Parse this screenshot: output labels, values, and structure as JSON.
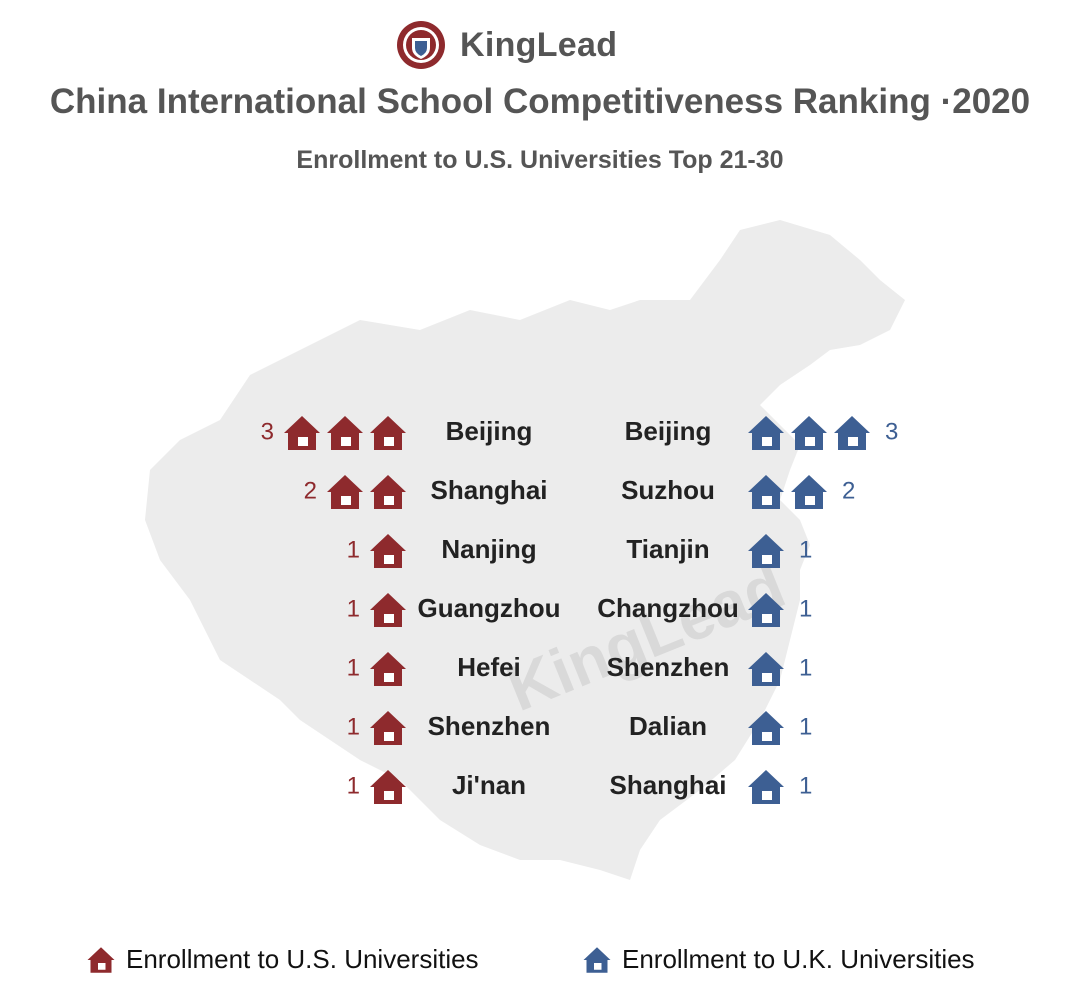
{
  "brand": {
    "name": "KingLead"
  },
  "watermark": "KingLead",
  "colors": {
    "us": "#8e2a2d",
    "uk": "#3d5f93",
    "text": "#222222",
    "heading": "#555555",
    "map": "#ececec"
  },
  "chart_data": {
    "type": "bar",
    "title": "China International School Competitiveness Ranking ·2020",
    "subtitle": "Enrollment to U.S. Universities Top 21-30",
    "legend": {
      "placement": "bottom",
      "us_label": "Enrollment to U.S. Universities",
      "uk_label": "Enrollment to U.K. Universities"
    },
    "series": [
      {
        "name": "Enrollment to U.S. Universities",
        "categories": [
          "Beijing",
          "Shanghai",
          "Nanjing",
          "Guangzhou",
          "Hefei",
          "Shenzhen",
          "Ji'nan"
        ],
        "values": [
          3,
          2,
          1,
          1,
          1,
          1,
          1
        ]
      },
      {
        "name": "Enrollment to U.K. Universities",
        "categories": [
          "Beijing",
          "Suzhou",
          "Tianjin",
          "Changzhou",
          "Shenzhen",
          "Dalian",
          "Shanghai"
        ],
        "values": [
          3,
          2,
          1,
          1,
          1,
          1,
          1
        ]
      }
    ]
  }
}
